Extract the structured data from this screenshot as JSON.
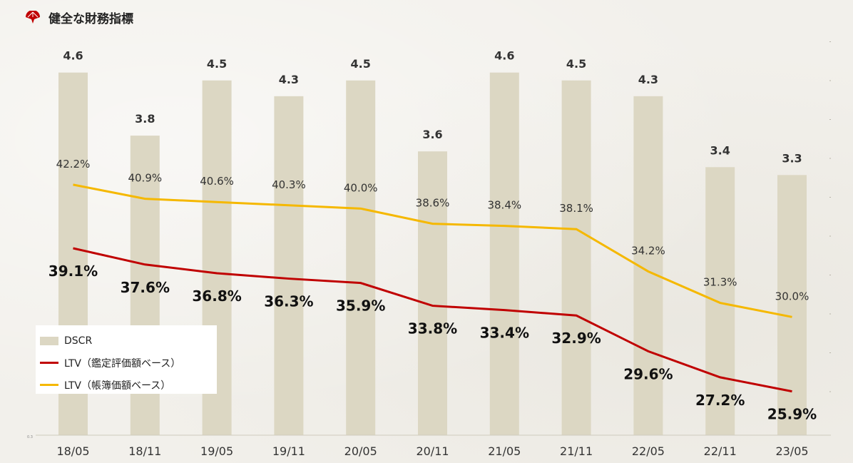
{
  "header": {
    "title": "健全な財務指標",
    "icon": "folding-fan-icon"
  },
  "colors": {
    "bar": "#dcd7c3",
    "ltv_appraisal": "#c00000",
    "ltv_book": "#f5b800",
    "accent": "#c00000"
  },
  "legend": {
    "dscr": "DSCR",
    "ltv_appraisal": "LTV（鑑定評価額ベース）",
    "ltv_book": "LTV（帳簿価額ベース）"
  },
  "chart_data": {
    "type": "bar",
    "categories": [
      "18/05",
      "18/11",
      "19/05",
      "19/11",
      "20/05",
      "20/11",
      "21/05",
      "21/11",
      "22/05",
      "22/11",
      "23/05"
    ],
    "series": [
      {
        "name": "DSCR",
        "type": "bar",
        "values": [
          4.6,
          3.8,
          4.5,
          4.3,
          4.5,
          3.6,
          4.6,
          4.5,
          4.3,
          3.4,
          3.3
        ],
        "labels": [
          "4.6",
          "3.8",
          "4.5",
          "4.3",
          "4.5",
          "3.6",
          "4.6",
          "4.5",
          "4.3",
          "3.4",
          "3.3"
        ]
      },
      {
        "name": "LTV（鑑定評価額ベース）",
        "type": "line",
        "values": [
          39.1,
          37.6,
          36.8,
          36.3,
          35.9,
          33.8,
          33.4,
          32.9,
          29.6,
          27.2,
          25.9
        ],
        "labels": [
          "39.1%",
          "37.6%",
          "36.8%",
          "36.3%",
          "35.9%",
          "33.8%",
          "33.4%",
          "32.9%",
          "29.6%",
          "27.2%",
          "25.9%"
        ]
      },
      {
        "name": "LTV（帳簿価額ベース）",
        "type": "line",
        "values": [
          42.2,
          40.9,
          40.6,
          40.3,
          40.0,
          38.6,
          38.4,
          38.1,
          34.2,
          31.3,
          30.0
        ],
        "labels": [
          "42.2%",
          "40.9%",
          "40.6%",
          "40.3%",
          "40.0%",
          "38.6%",
          "38.4%",
          "38.1%",
          "34.2%",
          "31.3%",
          "30.0%"
        ]
      }
    ],
    "axis_label": "0.3",
    "grid": false,
    "legend_position": "bottom-left"
  }
}
